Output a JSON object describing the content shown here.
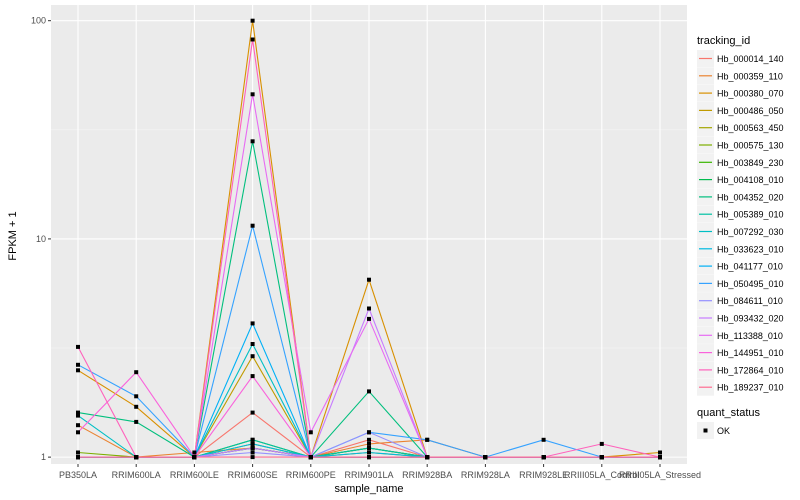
{
  "chart_data": {
    "type": "line",
    "xlabel": "sample_name",
    "ylabel": "FPKM + 1",
    "y_scale": "log10",
    "ylim": [
      0.93,
      118
    ],
    "y_ticks": [
      {
        "value": 1,
        "label": "1"
      },
      {
        "value": 10,
        "label": "10"
      },
      {
        "value": 100,
        "label": "100"
      }
    ],
    "categories": [
      "PB350LA",
      "RRIM600LA",
      "RRIM600LE",
      "RRIM600SE",
      "RRIM600PE",
      "RRIM901LA",
      "RRIM928BA",
      "RRIM928LA",
      "RRIM928LE",
      "RRIII05LA_Control",
      "RRIII05LA_Stressed"
    ],
    "legend_color_title": "tracking_id",
    "legend_shape_title": "quant_status",
    "legend_shape_label": "OK",
    "series": [
      {
        "name": "Hb_000014_140",
        "color": "#F8766D",
        "values": [
          1.0,
          1.0,
          1.0,
          1.6,
          1.0,
          1.2,
          1.0,
          1.0,
          1.0,
          1.0,
          1.0
        ]
      },
      {
        "name": "Hb_000359_110",
        "color": "#EA8331",
        "values": [
          1.4,
          1.0,
          1.05,
          1.1,
          1.0,
          1.15,
          1.2,
          1.0,
          1.0,
          1.0,
          1.0
        ]
      },
      {
        "name": "Hb_000380_070",
        "color": "#D89000",
        "values": [
          2.5,
          1.7,
          1.0,
          100,
          1.0,
          6.5,
          1.0,
          1.0,
          1.0,
          1.0,
          1.05
        ]
      },
      {
        "name": "Hb_000486_050",
        "color": "#C09B00",
        "values": [
          1.0,
          1.0,
          1.0,
          2.9,
          1.0,
          1.0,
          1.0,
          1.0,
          1.0,
          1.0,
          1.0
        ]
      },
      {
        "name": "Hb_000563_450",
        "color": "#A3A500",
        "values": [
          1.0,
          1.0,
          1.0,
          1.1,
          1.0,
          1.05,
          1.0,
          1.0,
          1.0,
          1.0,
          1.0
        ]
      },
      {
        "name": "Hb_000575_130",
        "color": "#7CAE00",
        "values": [
          1.05,
          1.0,
          1.0,
          1.15,
          1.0,
          1.1,
          1.0,
          1.0,
          1.0,
          1.0,
          1.0
        ]
      },
      {
        "name": "Hb_003849_230",
        "color": "#39B600",
        "values": [
          1.0,
          1.0,
          1.0,
          1.2,
          1.0,
          1.1,
          1.0,
          1.0,
          1.0,
          1.0,
          1.0
        ]
      },
      {
        "name": "Hb_004108_010",
        "color": "#00BB4E",
        "values": [
          1.0,
          1.0,
          1.0,
          1.1,
          1.0,
          1.0,
          1.0,
          1.0,
          1.0,
          1.0,
          1.0
        ]
      },
      {
        "name": "Hb_004352_020",
        "color": "#00BF7D",
        "values": [
          1.6,
          1.45,
          1.0,
          28,
          1.0,
          2.0,
          1.0,
          1.0,
          1.0,
          1.0,
          1.0
        ]
      },
      {
        "name": "Hb_005389_010",
        "color": "#00C1A3",
        "values": [
          1.0,
          1.0,
          1.0,
          1.2,
          1.0,
          1.1,
          1.0,
          1.0,
          1.0,
          1.0,
          1.0
        ]
      },
      {
        "name": "Hb_007292_030",
        "color": "#00BFC4",
        "values": [
          1.55,
          1.0,
          1.0,
          3.3,
          1.0,
          1.0,
          1.0,
          1.0,
          1.0,
          1.0,
          1.0
        ]
      },
      {
        "name": "Hb_033623_010",
        "color": "#00BAE0",
        "values": [
          1.0,
          1.0,
          1.0,
          1.15,
          1.0,
          1.05,
          1.0,
          1.0,
          1.0,
          1.0,
          1.0
        ]
      },
      {
        "name": "Hb_041177_010",
        "color": "#00B0F6",
        "values": [
          1.0,
          1.0,
          1.0,
          4.1,
          1.0,
          1.0,
          1.0,
          1.0,
          1.0,
          1.0,
          1.0
        ]
      },
      {
        "name": "Hb_050495_010",
        "color": "#35A2FF",
        "values": [
          2.65,
          1.9,
          1.0,
          11.5,
          1.0,
          1.3,
          1.2,
          1.0,
          1.2,
          1.0,
          1.0
        ]
      },
      {
        "name": "Hb_084611_010",
        "color": "#9590FF",
        "values": [
          1.0,
          1.0,
          1.0,
          1.05,
          1.0,
          1.3,
          1.0,
          1.0,
          1.0,
          1.0,
          1.0
        ]
      },
      {
        "name": "Hb_093432_020",
        "color": "#C77CFF",
        "values": [
          1.0,
          1.0,
          1.0,
          1.1,
          1.0,
          4.8,
          1.0,
          1.0,
          1.0,
          1.0,
          1.0
        ]
      },
      {
        "name": "Hb_113388_010",
        "color": "#E76BF3",
        "values": [
          1.0,
          1.0,
          1.0,
          46,
          1.3,
          4.3,
          1.0,
          1.0,
          1.0,
          1.0,
          1.0
        ]
      },
      {
        "name": "Hb_144951_010",
        "color": "#FA62DB",
        "values": [
          1.3,
          2.45,
          1.0,
          2.35,
          1.0,
          1.0,
          1.0,
          1.0,
          1.0,
          1.0,
          1.0
        ]
      },
      {
        "name": "Hb_172864_010",
        "color": "#FF62BC",
        "values": [
          3.2,
          1.0,
          1.0,
          82,
          1.0,
          1.0,
          1.0,
          1.0,
          1.0,
          1.15,
          1.0
        ]
      },
      {
        "name": "Hb_189237_010",
        "color": "#FF6C91",
        "values": [
          1.0,
          1.0,
          1.0,
          1.0,
          1.0,
          1.0,
          1.0,
          1.0,
          1.0,
          1.0,
          1.0
        ]
      }
    ]
  }
}
